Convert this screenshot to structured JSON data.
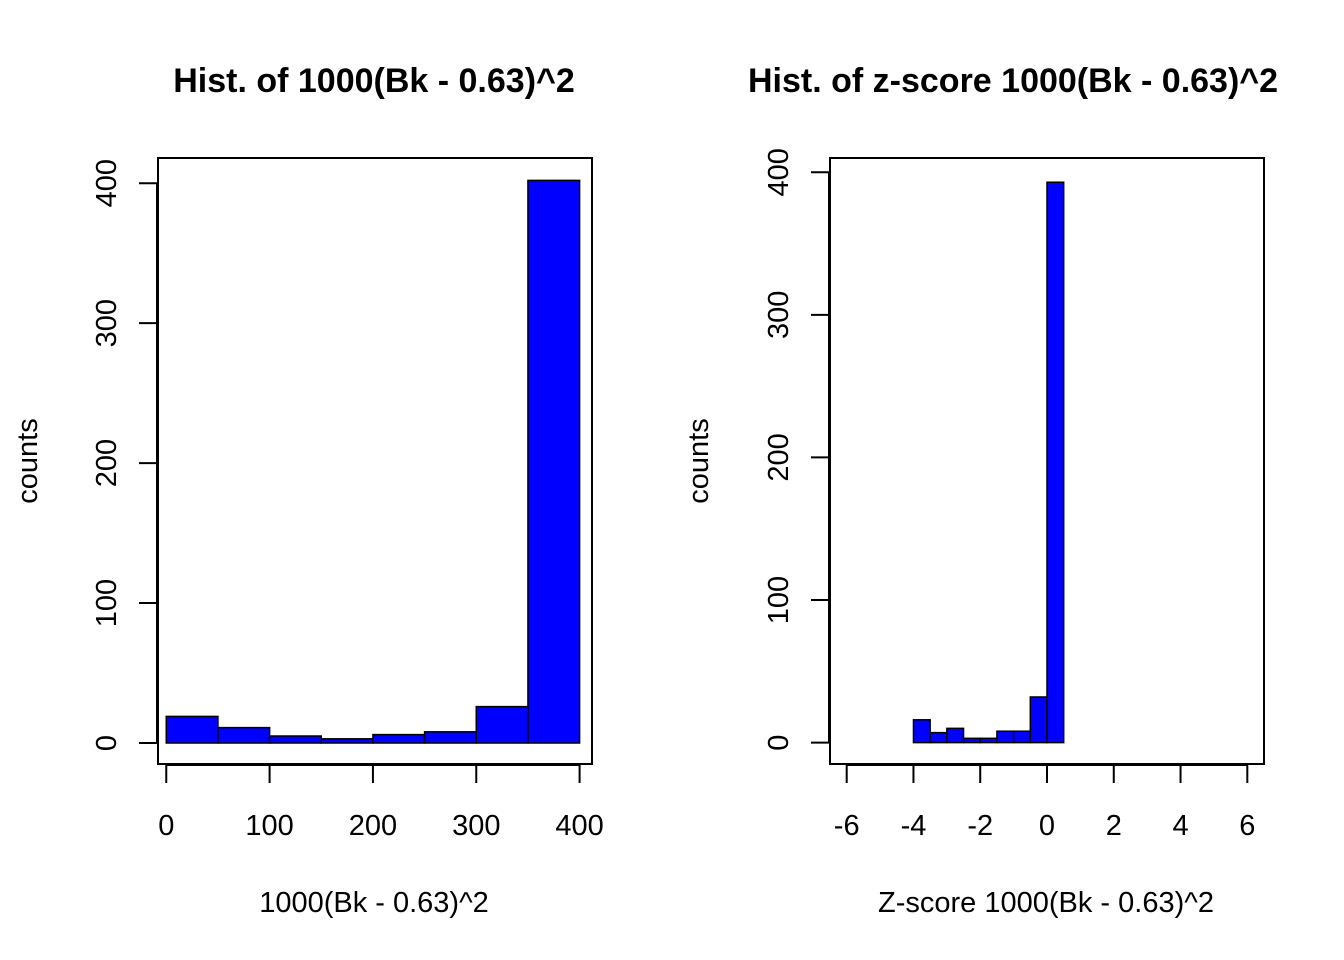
{
  "chart_data": [
    {
      "type": "bar",
      "title": "Hist. of 1000(Bk - 0.63)^2",
      "xlabel": "1000(Bk - 0.63)^2",
      "ylabel": "counts",
      "bin_edges": [
        0,
        50,
        100,
        150,
        200,
        250,
        300,
        350,
        400
      ],
      "values": [
        19,
        11,
        5,
        3,
        6,
        8,
        26,
        402
      ],
      "xlim": [
        -8,
        412
      ],
      "ylim": [
        -15,
        418
      ],
      "x_ticks": [
        "0",
        "100",
        "200",
        "300",
        "400"
      ],
      "y_ticks": [
        "0",
        "100",
        "200",
        "300",
        "400"
      ],
      "x_tick_values": [
        0,
        100,
        200,
        300,
        400
      ],
      "y_tick_values": [
        0,
        100,
        200,
        300,
        400
      ],
      "bar_color": "#0000FF",
      "grid": false
    },
    {
      "type": "bar",
      "title": "Hist. of z-score 1000(Bk - 0.63)^2",
      "xlabel": "Z-score 1000(Bk - 0.63)^2",
      "ylabel": "counts",
      "bin_edges": [
        -4,
        -3.5,
        -3,
        -2.5,
        -2,
        -1.5,
        -1,
        -0.5,
        0,
        0.5
      ],
      "values": [
        16,
        7,
        10,
        3,
        3,
        8,
        8,
        32,
        393
      ],
      "xlim": [
        -6.5,
        6.5
      ],
      "ylim": [
        -15,
        410
      ],
      "x_ticks": [
        "-6",
        "-4",
        "-2",
        "0",
        "2",
        "4",
        "6"
      ],
      "y_ticks": [
        "0",
        "100",
        "200",
        "300",
        "400"
      ],
      "x_tick_values": [
        -6,
        -4,
        -2,
        0,
        2,
        4,
        6
      ],
      "y_tick_values": [
        0,
        100,
        200,
        300,
        400
      ],
      "bar_color": "#0000FF",
      "grid": false
    }
  ]
}
